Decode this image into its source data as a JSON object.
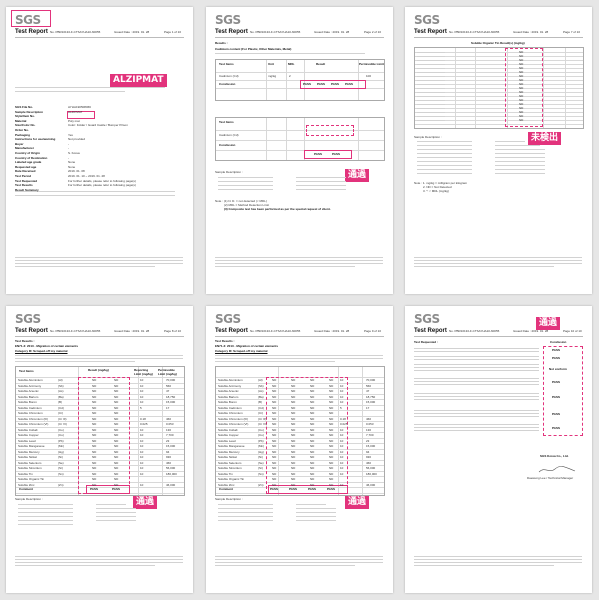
{
  "pages": [
    {
      "logo": "SGS",
      "report_title": "Test Report",
      "report_no": "No. PBR1013/LF-CTSAYHA10-60055",
      "issued_date": "Issued Date : 2019. 01. 28",
      "page_no": "Page 1 of 10",
      "stamp": "ALZIPMAT",
      "sample_fields": [
        {
          "label": "SGS File No.",
          "value": "AYHA190508066"
        },
        {
          "label": "Sample Description",
          "value": "ALZIPMAT"
        },
        {
          "label": "Style/Item No.",
          "value": ""
        },
        {
          "label": "Material",
          "value": "Poly mat"
        },
        {
          "label": "Size/Color No.",
          "value": "Color: Folder / Guard Castle / Bumper Prison"
        },
        {
          "label": "Order No.",
          "value": ""
        },
        {
          "label": "Packaging",
          "value": "Yes"
        },
        {
          "label": "Instructions for use/warning",
          "value": "Not provided"
        },
        {
          "label": "Buyer",
          "value": "-"
        },
        {
          "label": "Manufacturer",
          "value": "-"
        },
        {
          "label": "Country of Origin",
          "value": "S. Korea"
        },
        {
          "label": "Country of Destination",
          "value": "-"
        },
        {
          "label": "Labeled age grade",
          "value": "None"
        },
        {
          "label": "Requested age",
          "value": "None"
        },
        {
          "label": "Date Received",
          "value": "2019. 01. 08"
        },
        {
          "label": "Test Period",
          "value": "2019. 01. 10 ~ 2019. 01. 28"
        },
        {
          "label": "Test Requested",
          "value": "For further details, please refer to following page(s)"
        },
        {
          "label": "Test Results",
          "value": "For further details, please refer to following page(s)"
        },
        {
          "label": "Result Summary",
          "value": ""
        }
      ]
    },
    {
      "logo": "SGS",
      "report_title": "Test Report",
      "report_no": "No. PBR1013/LF-CTSAYHA10-60055",
      "issued_date": "Issued Date : 2019. 01. 28",
      "page_no": "Page 2 of 10",
      "stamp": "通過",
      "section": "Results :",
      "cadmium_title": "Cadmium content (For Plastic, Other Materials, Metal)",
      "test_headers": [
        "Test Items",
        "Unit",
        "MDL",
        "Result",
        "Permissible Limit"
      ],
      "row_cadmium": {
        "item": "Cadmium (Cd)",
        "unit": "mg/kg",
        "mdl": "2",
        "limit": "100"
      },
      "row_conclusion": "Conclusion",
      "pass": "PASS",
      "desc_label": "Sample Description :",
      "notes": [
        "Note : (1) N. D. = not detected (< MDL)",
        "(2) MDL = Method Detection Limit",
        "(3) Composite test has been performed as per the special request of client."
      ]
    },
    {
      "logo": "SGS",
      "report_title": "Test Report",
      "report_no": "No. PBR1013/LF-CTSAYHA10-60055",
      "issued_date": "Issued Date : 2019. 01. 28",
      "page_no": "Page 7 of 10",
      "stamp": "未検出",
      "col_header": "Soluble Organic Tin Result(s) (mg/kg)",
      "nd": "ND",
      "desc_label": "Sample Description :",
      "notes": [
        "Note : 1. mg/kg = milligram per kilogram",
        "2. ND = Not Detected",
        "3. *: < MDL (mg/kg)"
      ]
    },
    {
      "logo": "SGS",
      "report_title": "Test Report",
      "report_no": "No. PBR1013/LF-CTSAYHA10-60055",
      "issued_date": "Issued Date : 2019. 01. 28",
      "page_no": "Page 8 of 10",
      "stamp": "通過",
      "section": "Test Results :",
      "method_title": "EN71-3: 2013 - Migration of certain elements",
      "category": "Category III: Scraped-off toy material",
      "col_headers": [
        "Test Items",
        "Result (mg/kg)",
        "Reporting Limit (mg/kg)",
        "Permissible Limit (mg/kg)"
      ],
      "elements": [
        {
          "name": "Soluble Aluminium",
          "sym": "(Al)",
          "rl": "10",
          "lim": "70,000"
        },
        {
          "name": "Soluble Antimony",
          "sym": "(Sb)",
          "rl": "10",
          "lim": "560"
        },
        {
          "name": "Soluble Arsenic",
          "sym": "(As)",
          "rl": "10",
          "lim": "47"
        },
        {
          "name": "Soluble Barium",
          "sym": "(Ba)",
          "rl": "10",
          "lim": "18,750"
        },
        {
          "name": "Soluble Boron",
          "sym": "(B)",
          "rl": "10",
          "lim": "15,000"
        },
        {
          "name": "Soluble Cadmium",
          "sym": "(Cd)",
          "rl": "5",
          "lim": "17"
        },
        {
          "name": "Soluble Chromium",
          "sym": "(Cr)",
          "rl": "",
          "lim": ""
        },
        {
          "name": "Soluble Chromium (III)",
          "sym": "(Cr III)",
          "rl": "0.18",
          "lim": "460"
        },
        {
          "name": "Soluble Chromium (VI)",
          "sym": "(Cr VI)",
          "rl": "0.025",
          "lim": "0.053"
        },
        {
          "name": "Soluble Cobalt",
          "sym": "(Co)",
          "rl": "10",
          "lim": "130"
        },
        {
          "name": "Soluble Copper",
          "sym": "(Cu)",
          "rl": "10",
          "lim": "7,700"
        },
        {
          "name": "Soluble Lead",
          "sym": "(Pb)",
          "rl": "10",
          "lim": "23"
        },
        {
          "name": "Soluble Manganese",
          "sym": "(Mn)",
          "rl": "10",
          "lim": "15,000"
        },
        {
          "name": "Soluble Mercury",
          "sym": "(Hg)",
          "rl": "10",
          "lim": "94"
        },
        {
          "name": "Soluble Nickel",
          "sym": "(Ni)",
          "rl": "10",
          "lim": "930"
        },
        {
          "name": "Soluble Selenium",
          "sym": "(Se)",
          "rl": "10",
          "lim": "460"
        },
        {
          "name": "Soluble Strontium",
          "sym": "(Sr)",
          "rl": "10",
          "lim": "56,000"
        },
        {
          "name": "Soluble Tin",
          "sym": "(Sn)",
          "rl": "10",
          "lim": "180,000"
        },
        {
          "name": "Soluble Organic Tin",
          "sym": "",
          "rl": "",
          "lim": ""
        },
        {
          "name": "Soluble Zinc",
          "sym": "(Zn)",
          "rl": "10",
          "lim": "46,000"
        }
      ],
      "nd": "ND",
      "comment_label": "Comment",
      "pass": "PASS",
      "desc_label": "Sample Description :"
    },
    {
      "logo": "SGS",
      "report_title": "Test Report",
      "report_no": "No. PBR1013/LF-CTSAYHA10-60055",
      "issued_date": "Issued Date : 2019. 01. 28",
      "page_no": "Page 9 of 10",
      "stamp": "通過",
      "section": "Test Results :",
      "method_title": "EN71-3: 2013 - Migration of certain elements",
      "category": "Category III: Scraped-off toy material",
      "comment_label": "Comment",
      "pass": "PASS",
      "desc_label": "Sample Description :"
    },
    {
      "logo": "SGS",
      "report_title": "Test Report",
      "report_no": "No. PBR1013/LF-CTSAYHA10-60055",
      "issued_date": "Issued Date : 2019. 01. 28",
      "page_no": "Page 10 of 10",
      "stamp": "通過",
      "section": "Test Requested :",
      "conclusion_label": "Conclusion",
      "pass": "PASS",
      "not_evaluated": "Not conform",
      "company": "SGS Korea Co., Ltd.",
      "signer": "Daewung Lee / Technical Manager"
    }
  ]
}
